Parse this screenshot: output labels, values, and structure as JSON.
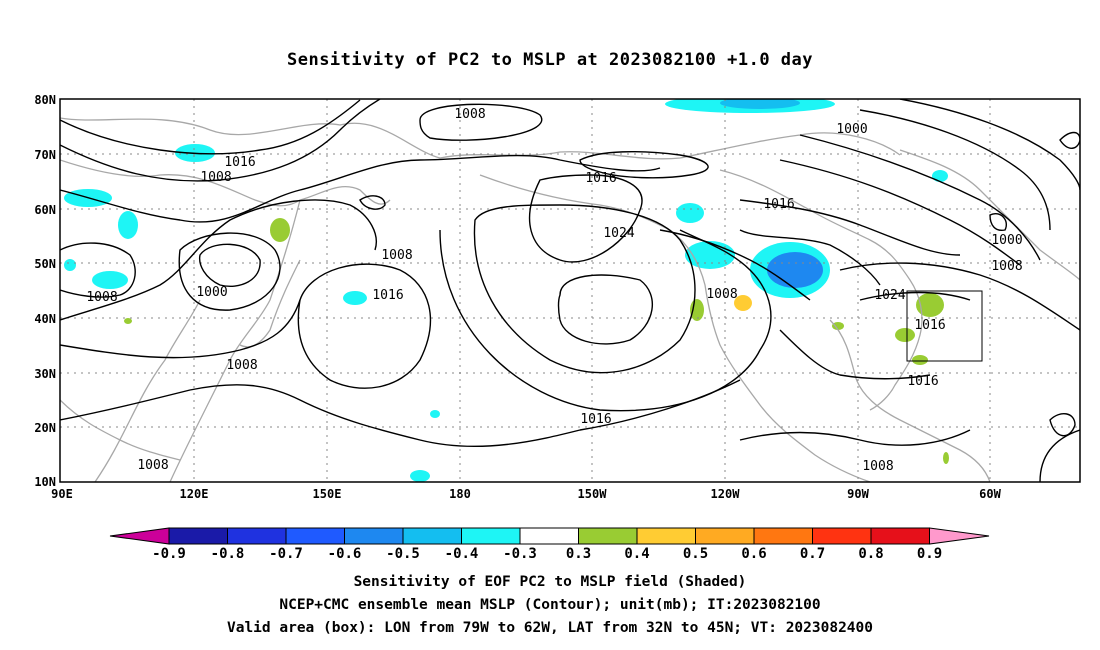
{
  "title": "Sensitivity of PC2 to MSLP at 2023082100 +1.0 day",
  "lon_ticks": [
    "90E",
    "120E",
    "150E",
    "180",
    "150W",
    "120W",
    "90W",
    "60W"
  ],
  "lat_ticks": [
    "80N",
    "70N",
    "60N",
    "50N",
    "40N",
    "30N",
    "20N",
    "10N"
  ],
  "contour_labels": [
    "1008",
    "1016",
    "1008",
    "1000",
    "1016",
    "1008",
    "1008",
    "1016",
    "1016",
    "1024",
    "1016",
    "1008",
    "1024",
    "1016",
    "1016",
    "1008",
    "1000",
    "1008",
    "1000",
    "1008",
    "1008"
  ],
  "colorbar": {
    "labels": [
      "-0.9",
      "-0.8",
      "-0.7",
      "-0.6",
      "-0.5",
      "-0.4",
      "-0.3",
      "0.3",
      "0.4",
      "0.5",
      "0.6",
      "0.7",
      "0.8",
      "0.9"
    ],
    "colors": [
      "#cc0099",
      "#1a1aa8",
      "#1f32e0",
      "#1f5aff",
      "#1e88f0",
      "#14bef0",
      "#1ef5f5",
      "#ffffff",
      "#99cc33",
      "#ffcc33",
      "#ffaa22",
      "#ff7711",
      "#ff3311",
      "#e6101a",
      "#ff99cc"
    ]
  },
  "captions": [
    "Sensitivity of EOF PC2 to MSLP field (Shaded)",
    "NCEP+CMC ensemble mean MSLP (Contour); unit(mb); IT:2023082100",
    "Valid area (box): LON from 79W to 62W, LAT from 32N to 45N; VT: 2023082400"
  ],
  "valid_box": {
    "lon_from": "79W",
    "lon_to": "62W",
    "lat_from": "32N",
    "lat_to": "45N"
  }
}
